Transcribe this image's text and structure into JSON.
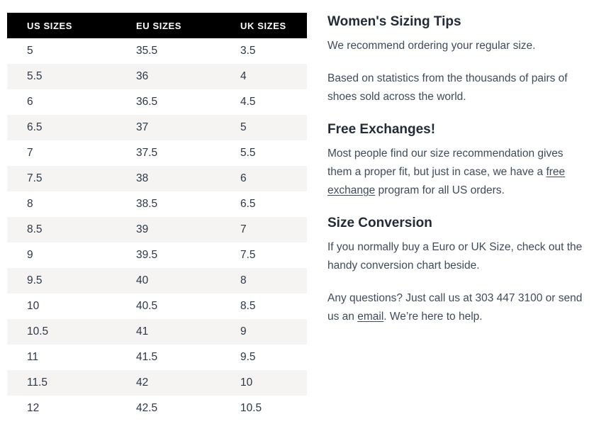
{
  "colors": {
    "header-bg": "#000000",
    "header-text": "#ffffff",
    "stripe": "#f5f4f2",
    "heading-text": "#232b38",
    "body-text": "#3f4b5d",
    "cell-text": "#2d3748"
  },
  "table": {
    "columns": [
      "US SIZES",
      "EU SIZES",
      "UK SIZES"
    ],
    "rows": [
      [
        "5",
        "35.5",
        "3.5"
      ],
      [
        "5.5",
        "36",
        "4"
      ],
      [
        "6",
        "36.5",
        "4.5"
      ],
      [
        "6.5",
        "37",
        "5"
      ],
      [
        "7",
        "37.5",
        "5.5"
      ],
      [
        "7.5",
        "38",
        "6"
      ],
      [
        "8",
        "38.5",
        "6.5"
      ],
      [
        "8.5",
        "39",
        "7"
      ],
      [
        "9",
        "39.5",
        "7.5"
      ],
      [
        "9.5",
        "40",
        "8"
      ],
      [
        "10",
        "40.5",
        "8.5"
      ],
      [
        "10.5",
        "41",
        "9"
      ],
      [
        "11",
        "41.5",
        "9.5"
      ],
      [
        "11.5",
        "42",
        "10"
      ],
      [
        "12",
        "42.5",
        "10.5"
      ]
    ]
  },
  "tips": {
    "sections": [
      {
        "heading": "Women's Sizing Tips",
        "paragraphs": [
          {
            "segments": [
              {
                "text": "We recommend ordering your regular size."
              }
            ]
          },
          {
            "segments": [
              {
                "text": "Based on statistics from the thousands of pairs of shoes sold across the world."
              }
            ]
          }
        ]
      },
      {
        "heading": "Free Exchanges!",
        "paragraphs": [
          {
            "segments": [
              {
                "text": "Most people find our size recommendation gives them a proper fit, but just in case, we have a "
              },
              {
                "text": "free exchange",
                "link": true
              },
              {
                "text": " program for all US orders."
              }
            ]
          }
        ]
      },
      {
        "heading": "Size Conversion",
        "paragraphs": [
          {
            "segments": [
              {
                "text": "If you normally buy a Euro or UK Size, check out the handy conversion chart beside."
              }
            ]
          },
          {
            "segments": [
              {
                "text": "Any questions? Just call us at 303 447 3100 or send us an "
              },
              {
                "text": "email",
                "link": true
              },
              {
                "text": ". We’re here to help."
              }
            ]
          }
        ]
      }
    ]
  }
}
